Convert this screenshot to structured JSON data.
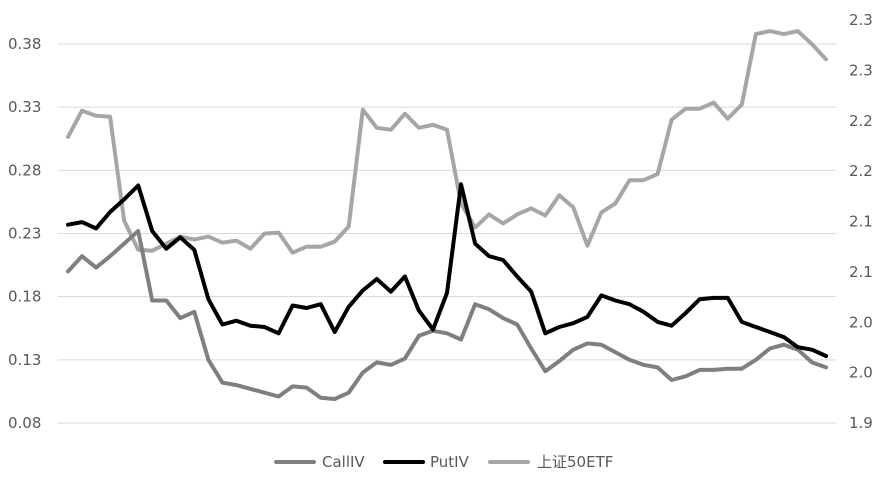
{
  "chart_data": {
    "type": "line",
    "title": "",
    "xlabel": "",
    "ylabel": "",
    "left_axis": {
      "ylim": [
        0.08,
        0.38
      ],
      "ticks": [
        "0.08",
        "0.13",
        "0.18",
        "0.23",
        "0.28",
        "0.33",
        "0.38"
      ],
      "tick_values": [
        0.08,
        0.13,
        0.18,
        0.23,
        0.28,
        0.33,
        0.38
      ]
    },
    "right_axis": {
      "ylim": [
        1.9,
        2.4
      ],
      "ticks": [
        "1.9",
        "2.0",
        "2.0",
        "2.1",
        "2.1",
        "2.2",
        "2.2",
        "2.3",
        "2.3"
      ],
      "tick_values": [
        1.9,
        1.95,
        2.0,
        2.05,
        2.1,
        2.15,
        2.2,
        2.25,
        2.3
      ]
    },
    "grid": true,
    "legend_position": "bottom",
    "series": [
      {
        "name": "CallIV",
        "axis": "left",
        "color": "#7f7f7f",
        "values": [
          0.2,
          0.212,
          0.203,
          0.212,
          0.222,
          0.232,
          0.177,
          0.177,
          0.163,
          0.168,
          0.13,
          0.112,
          0.11,
          0.107,
          0.104,
          0.101,
          0.109,
          0.108,
          0.1,
          0.099,
          0.104,
          0.12,
          0.128,
          0.126,
          0.131,
          0.149,
          0.153,
          0.151,
          0.146,
          0.174,
          0.17,
          0.163,
          0.158,
          0.139,
          0.121,
          0.129,
          0.138,
          0.143,
          0.142,
          0.136,
          0.13,
          0.126,
          0.124,
          0.114,
          0.117,
          0.122,
          0.122,
          0.123,
          0.123,
          0.13,
          0.139,
          0.142,
          0.138,
          0.128,
          0.124
        ]
      },
      {
        "name": "PutIV",
        "axis": "left",
        "color": "#000000",
        "values": [
          0.237,
          0.239,
          0.234,
          0.247,
          0.257,
          0.268,
          0.232,
          0.218,
          0.227,
          0.217,
          0.178,
          0.158,
          0.161,
          0.157,
          0.156,
          0.151,
          0.173,
          0.171,
          0.174,
          0.152,
          0.172,
          0.185,
          0.194,
          0.184,
          0.196,
          0.169,
          0.154,
          0.183,
          0.269,
          0.222,
          0.212,
          0.209,
          0.196,
          0.184,
          0.151,
          0.156,
          0.159,
          0.164,
          0.181,
          0.177,
          0.174,
          0.168,
          0.16,
          0.157,
          0.167,
          0.178,
          0.179,
          0.179,
          0.16,
          0.156,
          0.152,
          0.148,
          0.14,
          0.138,
          0.133
        ]
      },
      {
        "name": "上证50ETF",
        "axis": "right",
        "color": "#a6a6a6",
        "values": [
          2.184,
          2.21,
          2.205,
          2.204,
          2.101,
          2.072,
          2.071,
          2.078,
          2.085,
          2.082,
          2.085,
          2.079,
          2.081,
          2.073,
          2.088,
          2.089,
          2.069,
          2.075,
          2.075,
          2.08,
          2.095,
          2.211,
          2.193,
          2.191,
          2.207,
          2.193,
          2.196,
          2.191,
          2.118,
          2.094,
          2.107,
          2.098,
          2.107,
          2.113,
          2.106,
          2.126,
          2.114,
          2.076,
          2.109,
          2.118,
          2.141,
          2.141,
          2.147,
          2.201,
          2.212,
          2.212,
          2.218,
          2.202,
          2.216,
          2.286,
          2.289,
          2.286,
          2.289,
          2.276,
          2.261
        ]
      }
    ],
    "legend": [
      {
        "label": "CallIV",
        "color": "#7f7f7f"
      },
      {
        "label": "PutIV",
        "color": "#000000"
      },
      {
        "label": "上证50ETF",
        "color": "#a6a6a6"
      }
    ]
  }
}
